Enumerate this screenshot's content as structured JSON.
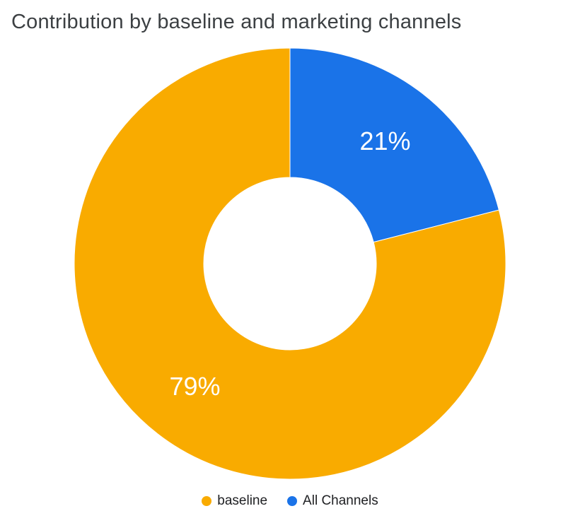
{
  "chart_data": {
    "type": "pie",
    "subtype": "donut",
    "title": "Contribution by baseline and marketing channels",
    "inner_radius_ratio": 0.4,
    "start_angle_deg": 0,
    "legend_position": "bottom",
    "label_color": "#ffffff",
    "slices": [
      {
        "label": "baseline",
        "value": 79,
        "pct_label": "79%",
        "color": "#F9AB00"
      },
      {
        "label": "All Channels",
        "value": 21,
        "pct_label": "21%",
        "color": "#1A73E8"
      }
    ]
  }
}
